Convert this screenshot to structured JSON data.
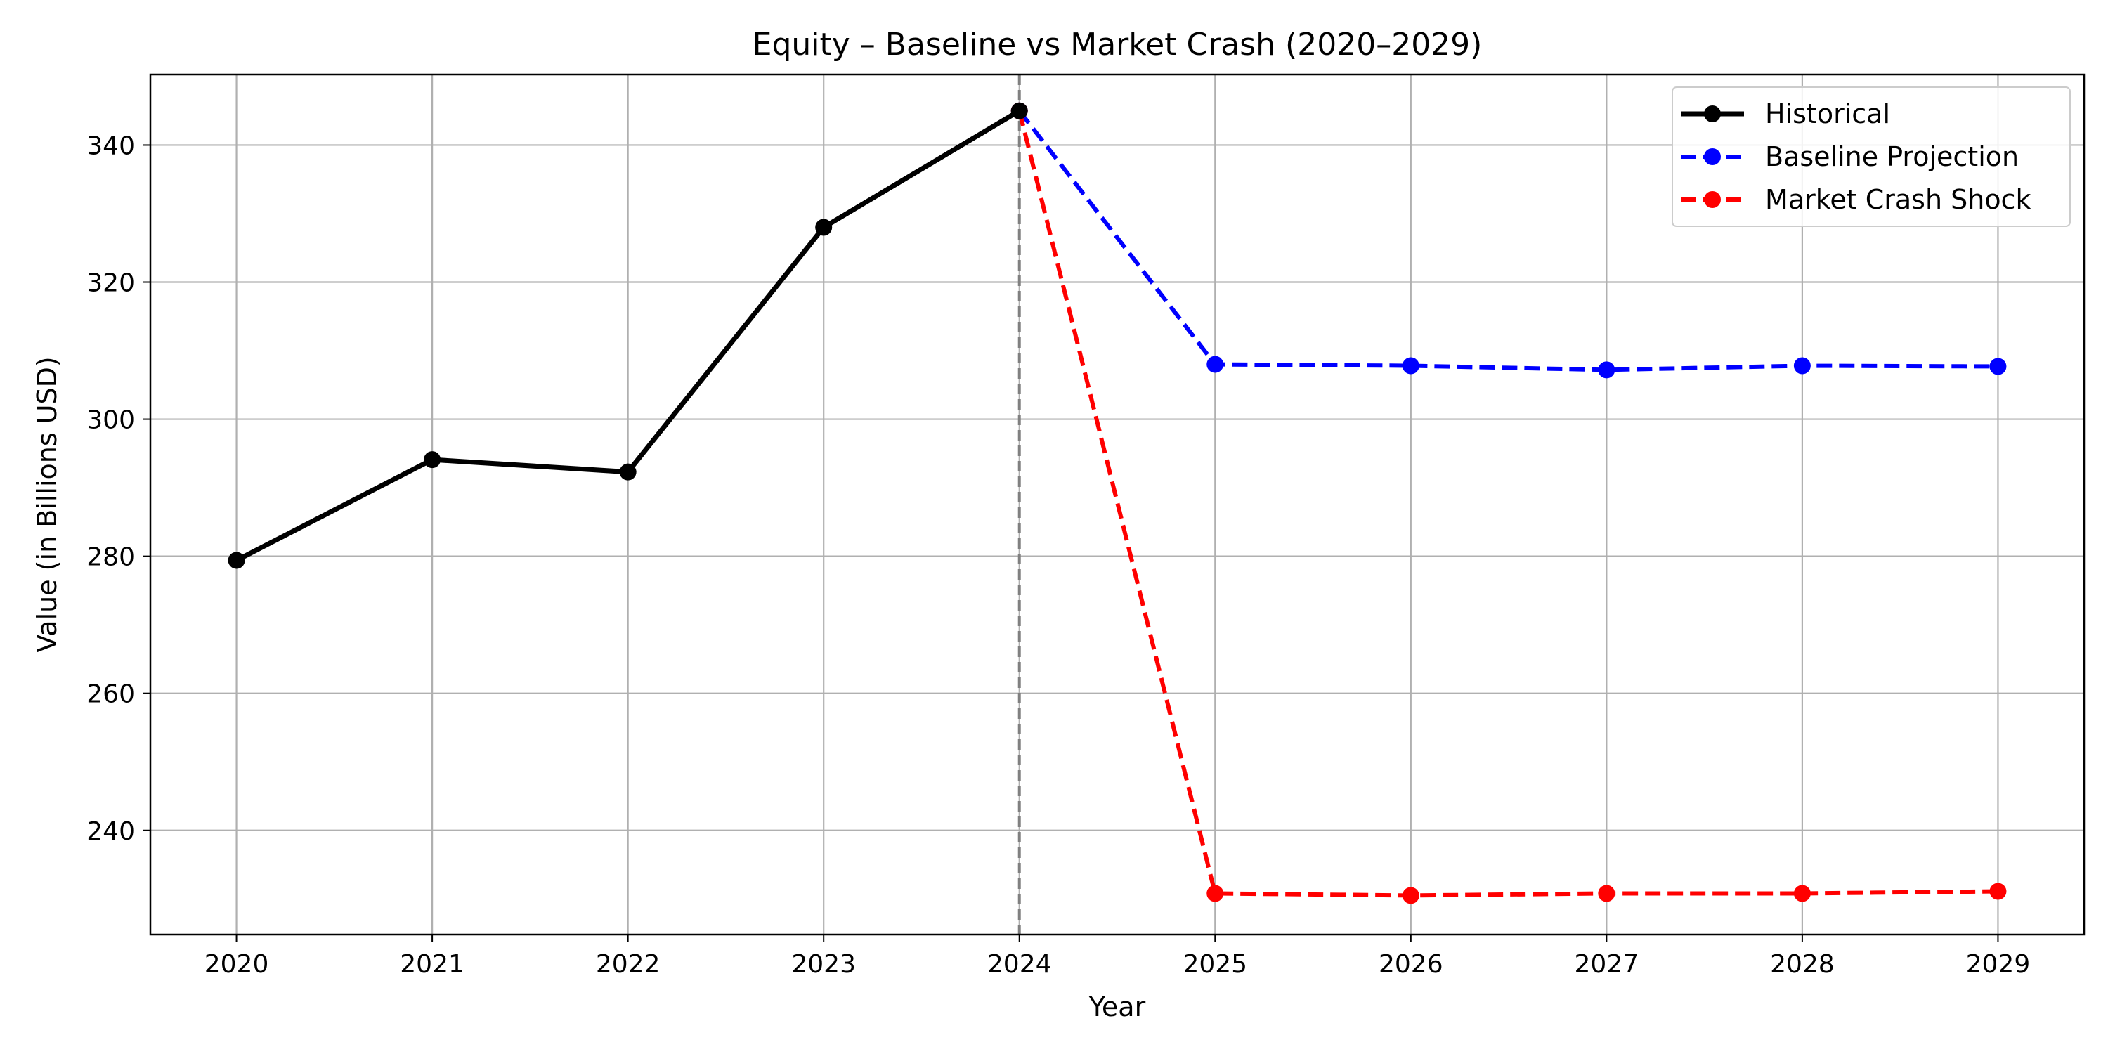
{
  "chart_data": {
    "type": "line",
    "title": "Equity – Baseline vs Market Crash (2020–2029)",
    "xlabel": "Year",
    "ylabel": "Value (in Billions USD)",
    "x": [
      2020,
      2021,
      2022,
      2023,
      2024,
      2025,
      2026,
      2027,
      2028,
      2029
    ],
    "x_tick_labels": [
      "2020",
      "2021",
      "2022",
      "2023",
      "2024",
      "2025",
      "2026",
      "2027",
      "2028",
      "2029"
    ],
    "xlim": [
      2019.56,
      2029.44
    ],
    "y_ticks": [
      240,
      260,
      280,
      300,
      320,
      340
    ],
    "y_tick_labels": [
      "240",
      "260",
      "280",
      "300",
      "320",
      "340"
    ],
    "ylim": [
      224.8,
      350.3
    ],
    "grid": true,
    "legend_position": "top-right",
    "divider_x": 2024,
    "divider_color": "#808080",
    "series": [
      {
        "name": "Historical",
        "color": "#000000",
        "style": "solid",
        "x": [
          2020,
          2021,
          2022,
          2023,
          2024
        ],
        "values": [
          279.4,
          294.1,
          292.3,
          328.0,
          345.0
        ]
      },
      {
        "name": "Baseline Projection",
        "color": "#0000ff",
        "style": "dashed",
        "x": [
          2024,
          2025,
          2026,
          2027,
          2028,
          2029
        ],
        "values": [
          345.0,
          308.0,
          307.8,
          307.2,
          307.8,
          307.7
        ]
      },
      {
        "name": "Market Crash Shock",
        "color": "#ff0000",
        "style": "dashed",
        "x": [
          2024,
          2025,
          2026,
          2027,
          2028,
          2029
        ],
        "values": [
          345.0,
          230.8,
          230.5,
          230.8,
          230.8,
          231.1
        ]
      }
    ]
  }
}
